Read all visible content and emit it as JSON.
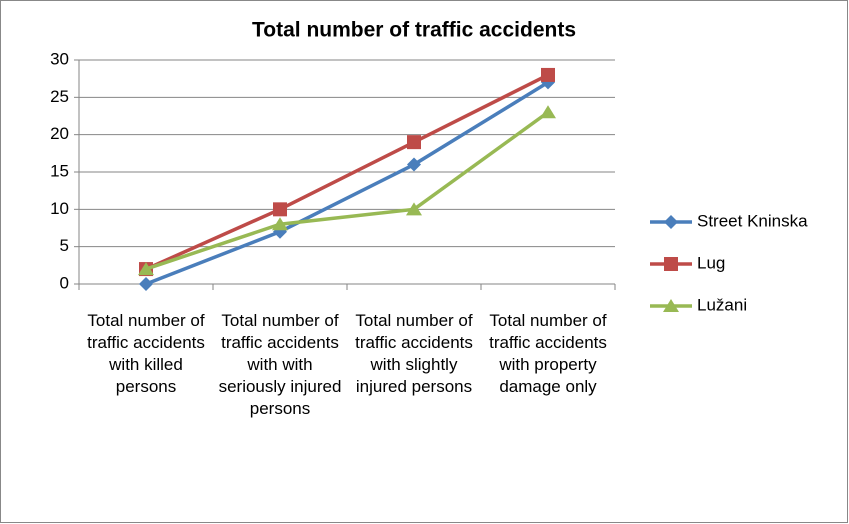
{
  "chart_data": {
    "type": "line",
    "title": "Total number of traffic accidents",
    "categories": [
      "Total number of traffic accidents with killed persons",
      "Total number of traffic accidents with with seriously injured persons",
      "Total number of traffic accidents with slightly injured persons",
      "Total number of traffic accidents with property damage only"
    ],
    "series": [
      {
        "name": "Street Kninska",
        "color": "#4a7ebb",
        "marker": "diamond",
        "values": [
          0,
          7,
          16,
          27
        ]
      },
      {
        "name": "Lug",
        "color": "#be4b48",
        "marker": "square",
        "values": [
          2,
          10,
          19,
          28
        ]
      },
      {
        "name": "Lužani",
        "color": "#98b954",
        "marker": "triangle",
        "values": [
          2,
          8,
          10,
          23
        ]
      }
    ],
    "ylim": [
      0,
      30
    ],
    "yticks": [
      0,
      5,
      10,
      15,
      20,
      25,
      30
    ],
    "grid": true,
    "legend": "right"
  }
}
